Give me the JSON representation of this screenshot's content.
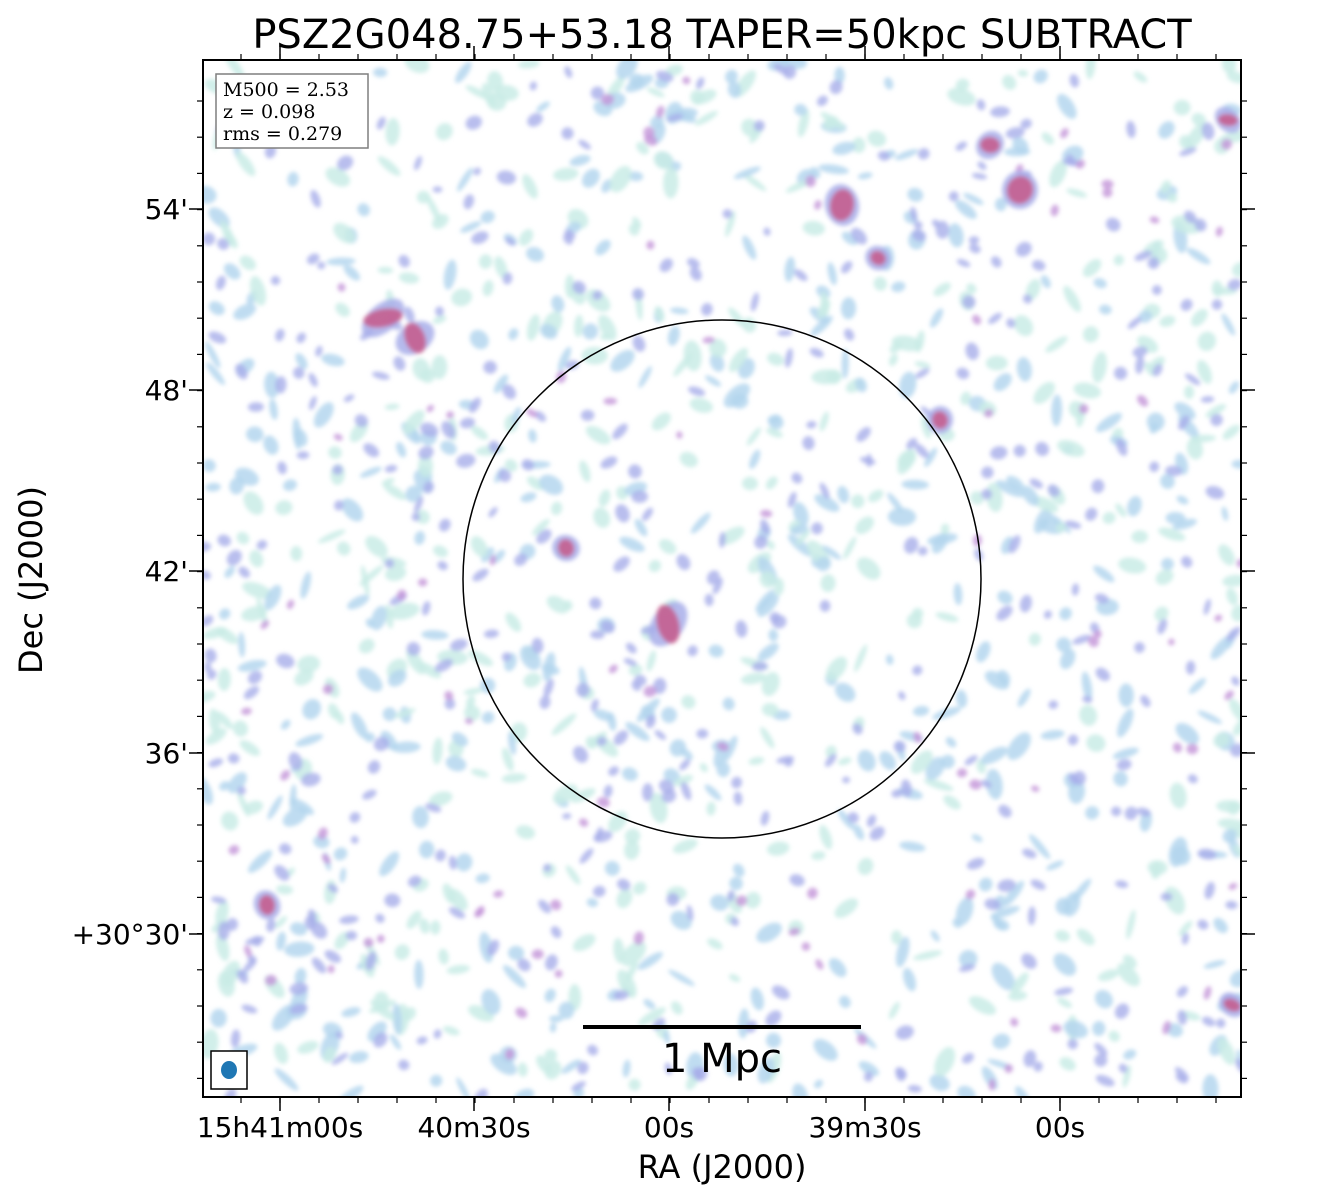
{
  "chart_data": {
    "type": "heatmap",
    "title": "PSZ2G048.75+53.18 TAPER=50kpc SUBTRACT",
    "xlabel": "RA (J2000)",
    "ylabel": "Dec (J2000)",
    "x_tick_labels": [
      "15h41m00s",
      "40m30s",
      "00s",
      "39m30s",
      "00s"
    ],
    "y_tick_labels": [
      "54'",
      "48'",
      "42'",
      "36'",
      "+30°30'"
    ],
    "info_box": {
      "mass": "M500 = 2.53",
      "redshift": "z = 0.098",
      "rms": "rms = 0.279"
    },
    "scale_bar_label": "1 Mpc",
    "colormap": [
      "#c9ece6",
      "#b4d6ee",
      "#a8aeea",
      "#c394d8",
      "#c7598a"
    ],
    "beam_color": "#1f77b4",
    "overlay": "circle"
  }
}
